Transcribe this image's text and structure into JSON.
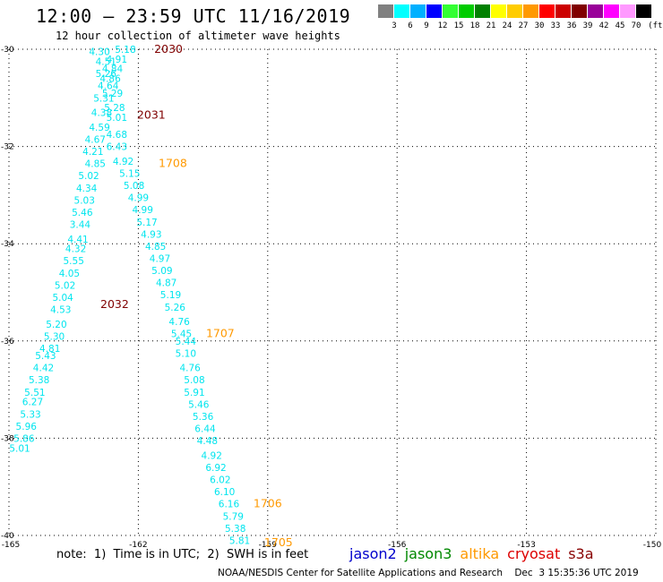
{
  "header": {
    "title": "12:00 – 23:59 UTC 11/16/2019",
    "subtitle": "12 hour collection of altimeter wave heights"
  },
  "colorbar": {
    "colors": [
      "#808080",
      "#00ffff",
      "#00b0ff",
      "#0000ff",
      "#33ff33",
      "#00cc00",
      "#008000",
      "#ffff00",
      "#ffcc00",
      "#ff9900",
      "#ff0000",
      "#cc0000",
      "#800000",
      "#990099",
      "#ff00ff",
      "#ff99ff",
      "#000000"
    ],
    "labels": [
      "3",
      "6",
      "9",
      "12",
      "15",
      "18",
      "21",
      "24",
      "27",
      "30",
      "33",
      "36",
      "39",
      "42",
      "45",
      "70",
      "(ft)"
    ]
  },
  "chart_data": {
    "type": "scatter",
    "xlim": [
      -165,
      -150
    ],
    "ylim": [
      -40,
      -30
    ],
    "xticks": [
      "-165",
      "-162",
      "-159",
      "-156",
      "-153",
      "-150"
    ],
    "yticks": [
      "-30",
      "-32",
      "-34",
      "-36",
      "-38",
      "-40"
    ],
    "grid": "dotted",
    "value_color": "#00e5ee",
    "points": [
      {
        "x": -162.9,
        "y": -30.05,
        "label": "4.30"
      },
      {
        "x": -162.3,
        "y": -30.0,
        "label": "5.18"
      },
      {
        "x": -162.5,
        "y": -30.2,
        "label": "4.91"
      },
      {
        "x": -162.75,
        "y": -30.25,
        "label": "4.51"
      },
      {
        "x": -162.6,
        "y": -30.4,
        "label": "4.84"
      },
      {
        "x": -162.75,
        "y": -30.5,
        "label": "5.26"
      },
      {
        "x": -162.65,
        "y": -30.6,
        "label": "4.86"
      },
      {
        "x": -162.7,
        "y": -30.75,
        "label": "4.64"
      },
      {
        "x": -162.6,
        "y": -30.9,
        "label": "5.29"
      },
      {
        "x": -162.8,
        "y": -31.0,
        "label": "5.31"
      },
      {
        "x": -162.55,
        "y": -31.2,
        "label": "5.28"
      },
      {
        "x": -162.85,
        "y": -31.3,
        "label": "4.38"
      },
      {
        "x": -162.5,
        "y": -31.4,
        "label": "5.01"
      },
      {
        "x": -162.9,
        "y": -31.6,
        "label": "4.59"
      },
      {
        "x": -162.5,
        "y": -31.75,
        "label": "4.68"
      },
      {
        "x": -163.0,
        "y": -31.85,
        "label": "4.67"
      },
      {
        "x": -162.5,
        "y": -32.0,
        "label": "6.43"
      },
      {
        "x": -163.05,
        "y": -32.1,
        "label": "4.21"
      },
      {
        "x": -162.35,
        "y": -32.3,
        "label": "4.92"
      },
      {
        "x": -163.0,
        "y": -32.35,
        "label": "4.85"
      },
      {
        "x": -162.2,
        "y": -32.55,
        "label": "5.15"
      },
      {
        "x": -163.15,
        "y": -32.6,
        "label": "5.02"
      },
      {
        "x": -162.1,
        "y": -32.8,
        "label": "5.08"
      },
      {
        "x": -163.2,
        "y": -32.85,
        "label": "4.34"
      },
      {
        "x": -162.0,
        "y": -33.05,
        "label": "4.99"
      },
      {
        "x": -163.25,
        "y": -33.1,
        "label": "5.03"
      },
      {
        "x": -161.9,
        "y": -33.3,
        "label": "4.99"
      },
      {
        "x": -163.3,
        "y": -33.35,
        "label": "5.46"
      },
      {
        "x": -161.8,
        "y": -33.55,
        "label": "5.17"
      },
      {
        "x": -163.35,
        "y": -33.6,
        "label": "3.44"
      },
      {
        "x": -161.7,
        "y": -33.8,
        "label": "4.93"
      },
      {
        "x": -163.4,
        "y": -33.9,
        "label": "4.41"
      },
      {
        "x": -161.6,
        "y": -34.05,
        "label": "4.85"
      },
      {
        "x": -163.45,
        "y": -34.1,
        "label": "4.32"
      },
      {
        "x": -161.5,
        "y": -34.3,
        "label": "4.97"
      },
      {
        "x": -163.5,
        "y": -34.35,
        "label": "5.55"
      },
      {
        "x": -161.45,
        "y": -34.55,
        "label": "5.09"
      },
      {
        "x": -163.6,
        "y": -34.6,
        "label": "4.05"
      },
      {
        "x": -161.35,
        "y": -34.8,
        "label": "4.87"
      },
      {
        "x": -163.7,
        "y": -34.85,
        "label": "5.02"
      },
      {
        "x": -161.25,
        "y": -35.05,
        "label": "5.19"
      },
      {
        "x": -163.75,
        "y": -35.1,
        "label": "5.04"
      },
      {
        "x": -161.15,
        "y": -35.3,
        "label": "5.26"
      },
      {
        "x": -163.8,
        "y": -35.35,
        "label": "4.53"
      },
      {
        "x": -161.05,
        "y": -35.6,
        "label": "4.76"
      },
      {
        "x": -163.9,
        "y": -35.65,
        "label": "5.20"
      },
      {
        "x": -161.0,
        "y": -35.85,
        "label": "5.45"
      },
      {
        "x": -163.95,
        "y": -35.9,
        "label": "5.30"
      },
      {
        "x": -160.9,
        "y": -36.0,
        "label": "5.44"
      },
      {
        "x": -164.05,
        "y": -36.15,
        "label": "4.81"
      },
      {
        "x": -160.9,
        "y": -36.25,
        "label": "5.10"
      },
      {
        "x": -164.15,
        "y": -36.3,
        "label": "5.43"
      },
      {
        "x": -160.8,
        "y": -36.55,
        "label": "4.76"
      },
      {
        "x": -164.2,
        "y": -36.55,
        "label": "4.42"
      },
      {
        "x": -160.7,
        "y": -36.8,
        "label": "5.08"
      },
      {
        "x": -164.3,
        "y": -36.8,
        "label": "5.38"
      },
      {
        "x": -160.7,
        "y": -37.05,
        "label": "5.91"
      },
      {
        "x": -164.4,
        "y": -37.05,
        "label": "5.51"
      },
      {
        "x": -160.6,
        "y": -37.3,
        "label": "5.46"
      },
      {
        "x": -164.45,
        "y": -37.25,
        "label": "6.27"
      },
      {
        "x": -160.5,
        "y": -37.55,
        "label": "5.36"
      },
      {
        "x": -164.5,
        "y": -37.5,
        "label": "5.33"
      },
      {
        "x": -160.45,
        "y": -37.8,
        "label": "6.44"
      },
      {
        "x": -164.6,
        "y": -37.75,
        "label": "5.96"
      },
      {
        "x": -160.4,
        "y": -38.05,
        "label": "4.48"
      },
      {
        "x": -164.65,
        "y": -38.0,
        "label": "5.86"
      },
      {
        "x": -164.75,
        "y": -38.2,
        "label": "5.01"
      },
      {
        "x": -160.3,
        "y": -38.35,
        "label": "4.92"
      },
      {
        "x": -160.2,
        "y": -38.6,
        "label": "6.92"
      },
      {
        "x": -160.1,
        "y": -38.85,
        "label": "6.02"
      },
      {
        "x": -160.0,
        "y": -39.1,
        "label": "6.10"
      },
      {
        "x": -159.9,
        "y": -39.35,
        "label": "6.16"
      },
      {
        "x": -159.8,
        "y": -39.6,
        "label": "5.79"
      },
      {
        "x": -159.75,
        "y": -39.85,
        "label": "5.38"
      },
      {
        "x": -159.65,
        "y": -40.1,
        "label": "5.81"
      }
    ],
    "annotations": [
      {
        "x": -161.3,
        "y": -30.0,
        "text": "2030",
        "color": "#800000"
      },
      {
        "x": -161.7,
        "y": -31.35,
        "text": "2031",
        "color": "#800000"
      },
      {
        "x": -161.2,
        "y": -32.35,
        "text": "1708",
        "color": "#ff9900"
      },
      {
        "x": -162.55,
        "y": -35.25,
        "text": "2032",
        "color": "#800000"
      },
      {
        "x": -160.1,
        "y": -35.85,
        "text": "1707",
        "color": "#ff9900"
      },
      {
        "x": -159.0,
        "y": -39.35,
        "text": "1706",
        "color": "#ff9900"
      },
      {
        "x": -158.75,
        "y": -40.15,
        "text": "1705",
        "color": "#ff9900"
      }
    ]
  },
  "footer": {
    "note": "note:  1)  Time is in UTC;  2)  SWH is in feet",
    "credit": "NOAA/NESDIS Center for Satellite Applications and Research    Dec  3 15:35:36 UTC 2019",
    "legend": [
      {
        "name": "jason2",
        "color": "#0000cc"
      },
      {
        "name": "jason3",
        "color": "#008800"
      },
      {
        "name": "altika",
        "color": "#ff9900"
      },
      {
        "name": "cryosat",
        "color": "#dd0000"
      },
      {
        "name": "s3a",
        "color": "#880000"
      }
    ]
  }
}
